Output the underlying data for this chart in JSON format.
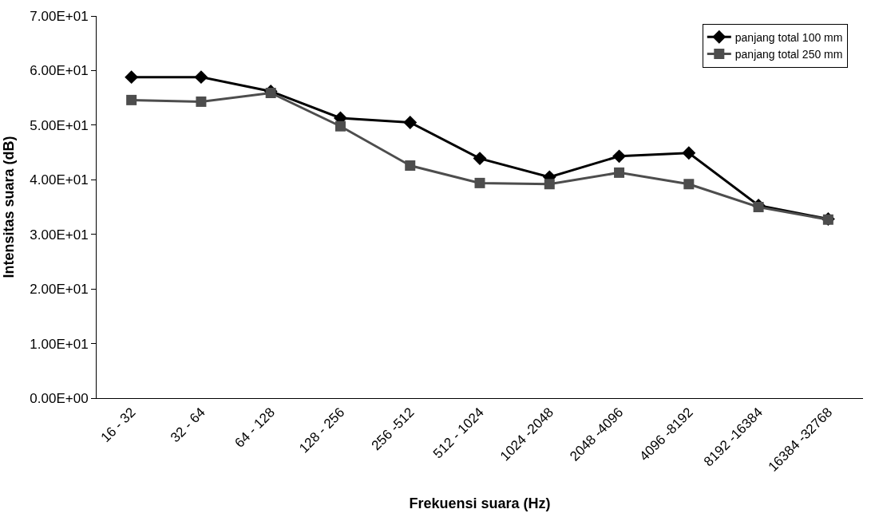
{
  "chart_data": {
    "type": "line",
    "xlabel": "Frekuensi suara (Hz)",
    "ylabel": "Intensitas suara (dB)",
    "categories": [
      "16 - 32",
      "32 - 64",
      "64 - 128",
      "128 - 256",
      "256 -512",
      "512 - 1024",
      "1024 -2048",
      "2048 -4096",
      "4096 -8192",
      "8192 -16384",
      "16384 -32768"
    ],
    "series": [
      {
        "name": "panjang total 100 mm",
        "color": "#000000",
        "marker": "diamond",
        "values": [
          58.8,
          58.8,
          56.2,
          51.3,
          50.5,
          43.9,
          40.5,
          44.3,
          44.9,
          35.3,
          32.8
        ]
      },
      {
        "name": "panjang total 250 mm",
        "color": "#4d4d4d",
        "marker": "square",
        "values": [
          54.6,
          54.3,
          55.9,
          49.8,
          42.6,
          39.4,
          39.2,
          41.3,
          39.2,
          35.0,
          32.7
        ]
      }
    ],
    "ylim": [
      0,
      70
    ],
    "yticks": [
      {
        "value": 0,
        "label": "0.00E+00"
      },
      {
        "value": 10,
        "label": "1.00E+01"
      },
      {
        "value": 20,
        "label": "2.00E+01"
      },
      {
        "value": 30,
        "label": "3.00E+01"
      },
      {
        "value": 40,
        "label": "4.00E+01"
      },
      {
        "value": 50,
        "label": "5.00E+01"
      },
      {
        "value": 60,
        "label": "6.00E+01"
      },
      {
        "value": 70,
        "label": "7.00E+01"
      }
    ],
    "legend": "top right",
    "line_style": "solid"
  }
}
